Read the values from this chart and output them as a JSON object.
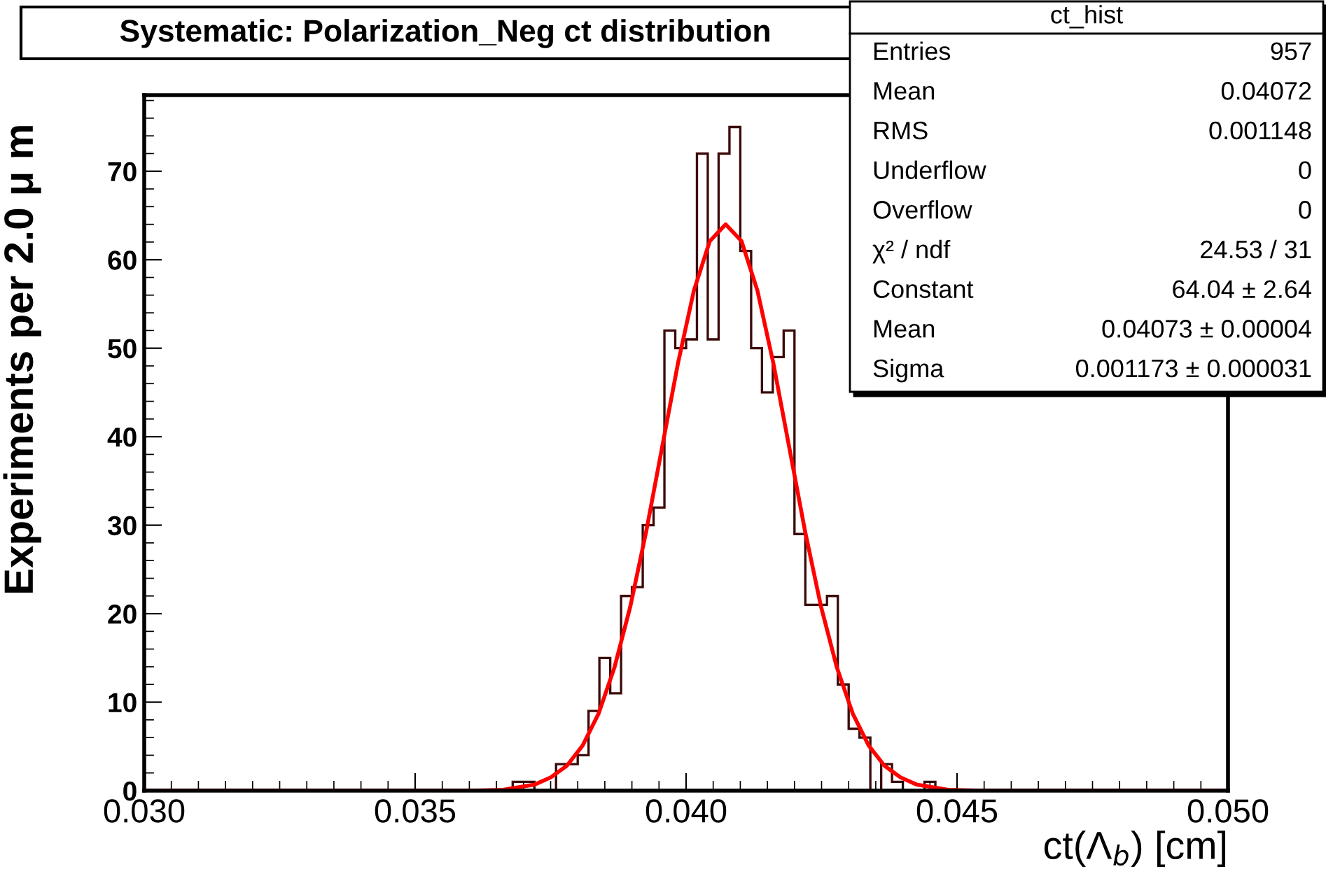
{
  "chart_data": {
    "type": "histogram",
    "title": "Systematic: Polarization_Neg ct distribution",
    "xlabel": "ct(Λ$_{b}$) [cm]",
    "ylabel": "Experiments per 2.0 μ m",
    "bins": [
      0.03,
      0.0302,
      0.0304,
      0.0306,
      0.0308,
      0.031,
      0.0312,
      0.0314,
      0.0316,
      0.0318,
      0.032,
      0.0322,
      0.0324,
      0.0326,
      0.0328,
      0.033,
      0.0332,
      0.0334,
      0.0336,
      0.0338,
      0.034,
      0.0342,
      0.0344,
      0.0346,
      0.0348,
      0.035,
      0.0352,
      0.0354,
      0.0356,
      0.0358,
      0.036,
      0.0362,
      0.0364,
      0.0366,
      0.0368,
      0.037,
      0.0372,
      0.0374,
      0.0376,
      0.0378,
      0.038,
      0.0382,
      0.0384,
      0.0386,
      0.0388,
      0.039,
      0.0392,
      0.0394,
      0.0396,
      0.0398,
      0.04,
      0.0402,
      0.0404,
      0.0406,
      0.0408,
      0.041,
      0.0412,
      0.0414,
      0.0416,
      0.0418,
      0.042,
      0.0422,
      0.0424,
      0.0426,
      0.0428,
      0.043,
      0.0432,
      0.0434,
      0.0436,
      0.0438,
      0.044,
      0.0442,
      0.0444,
      0.0446,
      0.0448,
      0.045,
      0.0452,
      0.0454,
      0.0456,
      0.0458,
      0.046,
      0.0462,
      0.0464,
      0.0466,
      0.0468,
      0.047,
      0.0472,
      0.0474,
      0.0476,
      0.0478,
      0.048,
      0.0482,
      0.0484,
      0.0486,
      0.0488,
      0.049,
      0.0492,
      0.0494,
      0.0496,
      0.0498,
      0.05
    ],
    "series": [
      {
        "color": "#3c0a0a",
        "values": [
          0,
          0,
          0,
          0,
          0,
          0,
          0,
          0,
          0,
          0,
          0,
          0,
          0,
          0,
          0,
          0,
          0,
          0,
          0,
          0,
          0,
          0,
          0,
          0,
          0,
          0,
          0,
          0,
          0,
          0,
          0,
          0,
          0,
          0,
          1,
          1,
          0,
          0,
          3,
          3,
          4,
          9,
          15,
          11,
          22,
          23,
          30,
          32,
          52,
          50,
          51,
          72,
          51,
          72,
          75,
          61,
          50,
          45,
          49,
          52,
          29,
          21,
          21,
          22,
          12,
          7,
          6,
          0,
          3,
          1,
          0,
          0,
          1,
          0,
          0,
          0,
          0,
          0,
          0,
          0,
          0,
          0,
          0,
          0,
          0,
          0,
          0,
          0,
          0,
          0,
          0,
          0,
          0,
          0,
          0,
          0,
          0,
          0,
          0,
          0
        ]
      },
      {
        "type": "line",
        "color": "#ff0000",
        "x": [
          0.03,
          0.036038,
          0.036624,
          0.037211,
          0.037504,
          0.037797,
          0.038091,
          0.038384,
          0.038677,
          0.03897,
          0.039264,
          0.039557,
          0.03985,
          0.040143,
          0.040437,
          0.04073,
          0.041023,
          0.041317,
          0.04161,
          0.041903,
          0.042196,
          0.04249,
          0.042783,
          0.043076,
          0.043369,
          0.043663,
          0.043956,
          0.044249,
          0.044836,
          0.045422,
          0.05
        ],
        "values": [
          0,
          0,
          0.1,
          0.7,
          1.5,
          2.8,
          5.1,
          8.7,
          13.9,
          20.8,
          29.3,
          38.8,
          48.3,
          56.5,
          62.1,
          64,
          62.1,
          56.5,
          48.3,
          38.8,
          29.3,
          20.8,
          13.9,
          8.7,
          5.1,
          2.8,
          1.5,
          0.7,
          0.1,
          0,
          0
        ]
      }
    ],
    "xlim": [
      0.03,
      0.05
    ],
    "xticks": [
      {
        "value": 0.03,
        "label": "0.030"
      },
      {
        "value": 0.035,
        "label": "0.035"
      },
      {
        "value": 0.04,
        "label": "0.040"
      },
      {
        "value": 0.045,
        "label": "0.045"
      },
      {
        "value": 0.05,
        "label": "0.050"
      }
    ],
    "ylim": [
      0,
      78.6
    ],
    "yticks": [
      0,
      {
        "value": 2,
        "label": null
      },
      {
        "value": 4,
        "label": null
      },
      {
        "value": 6,
        "label": null
      },
      {
        "value": 8,
        "label": null
      },
      10,
      {
        "value": 12,
        "label": null
      },
      {
        "value": 14,
        "label": null
      },
      {
        "value": 16,
        "label": null
      },
      {
        "value": 18,
        "label": null
      },
      20,
      {
        "value": 22,
        "label": null
      },
      {
        "value": 24,
        "label": null
      },
      {
        "value": 26,
        "label": null
      },
      {
        "value": 28,
        "label": null
      },
      30,
      {
        "value": 32,
        "label": null
      },
      {
        "value": 34,
        "label": null
      },
      {
        "value": 36,
        "label": null
      },
      {
        "value": 38,
        "label": null
      },
      40,
      {
        "value": 42,
        "label": null
      },
      {
        "value": 44,
        "label": null
      },
      {
        "value": 46,
        "label": null
      },
      {
        "value": 48,
        "label": null
      },
      50,
      {
        "value": 52,
        "label": null
      },
      {
        "value": 54,
        "label": null
      },
      {
        "value": 56,
        "label": null
      },
      {
        "value": 58,
        "label": null
      },
      60,
      {
        "value": 62,
        "label": null
      },
      {
        "value": 64,
        "label": null
      },
      {
        "value": 66,
        "label": null
      },
      {
        "value": 68,
        "label": null
      },
      70,
      {
        "value": 72,
        "label": null
      },
      {
        "value": 74,
        "label": null
      },
      {
        "value": 76,
        "label": null
      },
      {
        "value": 78,
        "label": null
      }
    ],
    "annotations": [
      "ct_hist",
      "Entries\t957",
      "Mean\t0.04072",
      "RMS\t0.001148",
      "Underflow\t0",
      "Overflow\t0",
      "χ² / ndf\t24.53 / 31",
      "Constant\t64.04 ± 2.64",
      "Mean\t0.04073 ± 0.00004",
      "Sigma\t0.001173 ± 0.000031"
    ]
  }
}
